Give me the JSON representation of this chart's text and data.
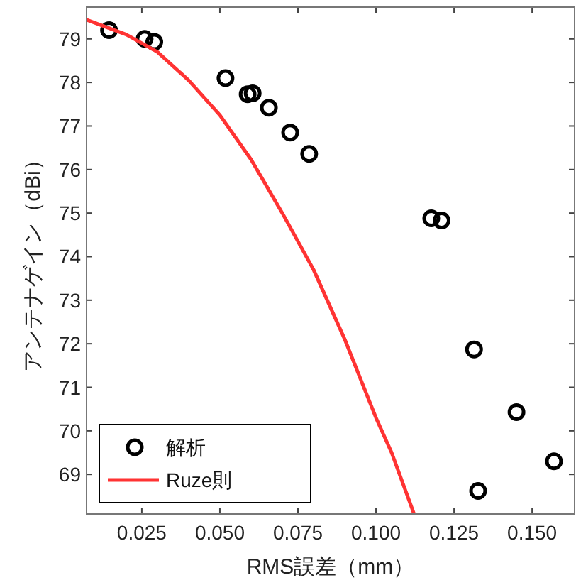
{
  "chart_data": {
    "type": "scatter",
    "xlabel": "RMS誤差（mm）",
    "ylabel": "アンテナゲイン（dBi）",
    "xlim": [
      0.0073,
      0.1636
    ],
    "ylim": [
      68.09,
      79.73
    ],
    "xticks": [
      {
        "value": 0.025,
        "label": "0.025"
      },
      {
        "value": 0.05,
        "label": "0.050"
      },
      {
        "value": 0.075,
        "label": "0.075"
      },
      {
        "value": 0.1,
        "label": "0.100"
      },
      {
        "value": 0.125,
        "label": "0.125"
      },
      {
        "value": 0.15,
        "label": "0.150"
      }
    ],
    "yticks": [
      69,
      70,
      71,
      72,
      73,
      74,
      75,
      76,
      77,
      78,
      79
    ],
    "grid": false,
    "legend": "bottom left",
    "series": [
      {
        "name": "解析",
        "marker": "circle",
        "color": "#000000",
        "x": [
          0.0145,
          0.0259,
          0.029,
          0.0518,
          0.0589,
          0.0605,
          0.0657,
          0.0725,
          0.0786,
          0.1177,
          0.121,
          0.1314,
          0.1327,
          0.145,
          0.157
        ],
        "values": [
          79.2,
          79.0,
          78.93,
          78.1,
          77.73,
          77.75,
          77.42,
          76.85,
          76.36,
          74.88,
          74.83,
          71.87,
          68.62,
          70.43,
          69.3
        ]
      },
      {
        "name": "Ruze則",
        "type": "line",
        "line_style": "solid",
        "color": "#ff3333",
        "x": [
          0.0073,
          0.02,
          0.03,
          0.04,
          0.05,
          0.06,
          0.07,
          0.08,
          0.09,
          0.1,
          0.105,
          0.1122
        ],
        "values": [
          79.44,
          79.1,
          78.7,
          78.05,
          77.25,
          76.23,
          75.0,
          73.7,
          72.1,
          70.3,
          69.5,
          68.09
        ]
      }
    ]
  }
}
